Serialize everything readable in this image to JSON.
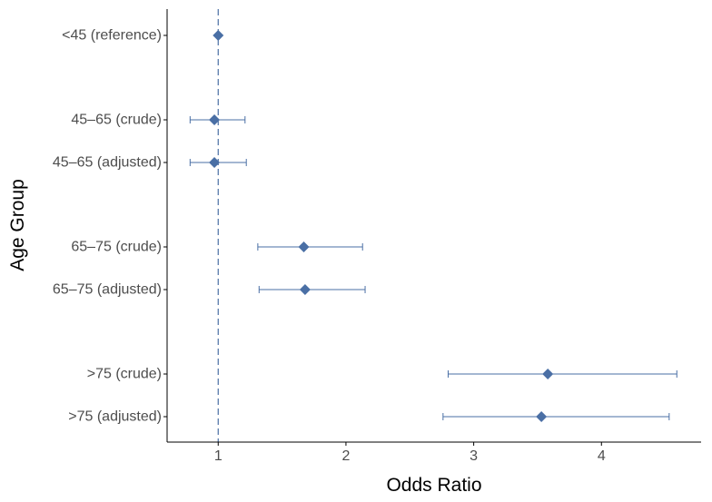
{
  "chart_data": {
    "type": "forest",
    "xlabel": "Odds Ratio",
    "ylabel": "Age Group",
    "xlim": [
      0.6,
      4.78
    ],
    "x_ticks": [
      1,
      2,
      3,
      4
    ],
    "reference_line": 1,
    "grid": false,
    "colors": {
      "marker": "#4a6fa5",
      "error_bar": "#4a6fa5",
      "reference_line": "#4a6fa5",
      "axis": "#000000"
    },
    "rows": [
      {
        "label": "<45 (reference)",
        "or": 1.0,
        "lower": null,
        "upper": null,
        "group": 0
      },
      {
        "label": "45–65 (crude)",
        "or": 0.97,
        "lower": 0.78,
        "upper": 1.21,
        "group": 1
      },
      {
        "label": "45–65 (adjusted)",
        "or": 0.97,
        "lower": 0.78,
        "upper": 1.22,
        "group": 1
      },
      {
        "label": "65–75 (crude)",
        "or": 1.67,
        "lower": 1.31,
        "upper": 2.13,
        "group": 2
      },
      {
        "label": "65–75 (adjusted)",
        "or": 1.68,
        "lower": 1.32,
        "upper": 2.15,
        "group": 2
      },
      {
        "label": ">75 (crude)",
        "or": 3.58,
        "lower": 2.8,
        "upper": 4.59,
        "group": 3
      },
      {
        "label": ">75 (adjusted)",
        "or": 3.53,
        "lower": 2.76,
        "upper": 4.53,
        "group": 3
      }
    ]
  }
}
